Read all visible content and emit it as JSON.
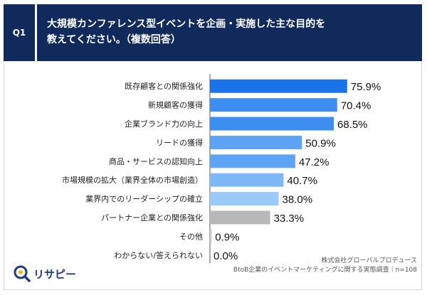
{
  "question": {
    "badge": "Q1",
    "title_line1": "大規模カンファレンス型イベントを企画・実施した主な目的を",
    "title_line2": "教えてください。（複数回答）"
  },
  "chart_data": {
    "type": "bar",
    "orientation": "horizontal",
    "categories": [
      "既存顧客との関係強化",
      "新規顧客の獲得",
      "企業ブランド力の向上",
      "リードの獲得",
      "商品・サービスの認知向上",
      "市場規模の拡大（業界全体の市場創造）",
      "業界内でのリーダーシップの確立",
      "パートナー企業との関係強化",
      "その他",
      "わからない/答えられない"
    ],
    "values": [
      75.9,
      70.4,
      68.5,
      50.9,
      47.2,
      40.7,
      38.0,
      33.3,
      0.9,
      0.0
    ],
    "value_labels": [
      "75.9%",
      "70.4%",
      "68.5%",
      "50.9%",
      "47.2%",
      "40.7%",
      "38.0%",
      "33.3%",
      "0.9%",
      "0.0%"
    ],
    "colors": [
      "#1a73e8",
      "#3d8ef0",
      "#3d8ef0",
      "#5da4f4",
      "#5da4f4",
      "#7eb7f6",
      "#9ccaf8",
      "#b8b8b8",
      "#c8c8c8",
      "#c8c8c8"
    ],
    "xlim": [
      0,
      100
    ],
    "grid": false,
    "legend": "none"
  },
  "footer": {
    "logo_text": "リサピー",
    "credit_line1": "株式会社グローバルプロデュース",
    "credit_line2": "BtoB企業のイベントマーケティングに関する実態調査｜n=108"
  },
  "colors": {
    "header_bg": "#102a5c",
    "axis": "#555555"
  }
}
